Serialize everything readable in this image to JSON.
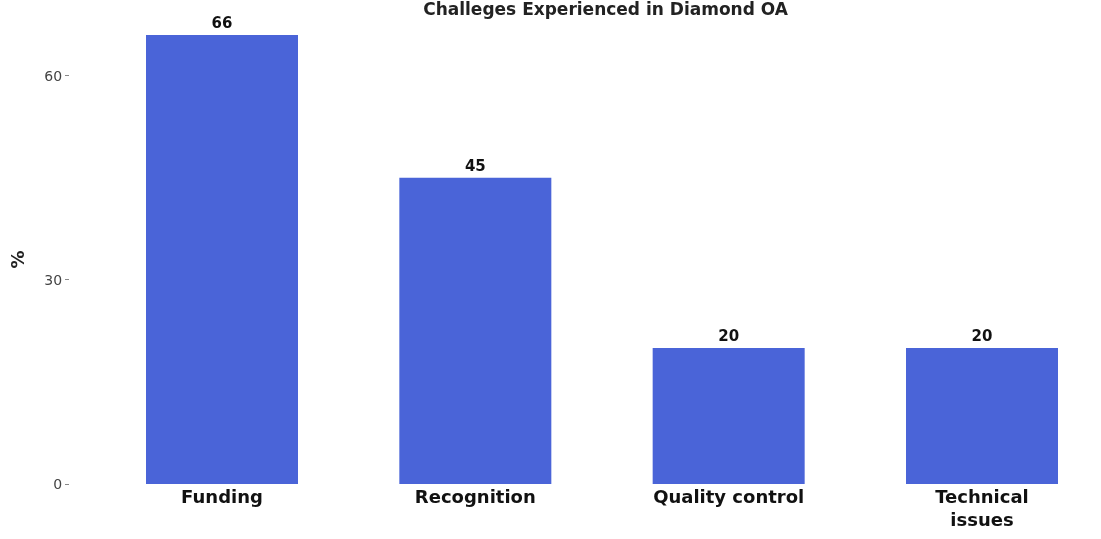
{
  "chart_data": {
    "type": "bar",
    "title": "Challeges Experienced in Diamond OA",
    "ylabel": "%",
    "categories": [
      "Funding",
      "Recognition",
      "Quality control",
      "Technical\nissues"
    ],
    "values": [
      66,
      45,
      20,
      20
    ],
    "color": "#4a64d8",
    "ylim": [
      0,
      66
    ],
    "yticks": [
      0,
      30,
      60
    ],
    "data_labels": true
  }
}
